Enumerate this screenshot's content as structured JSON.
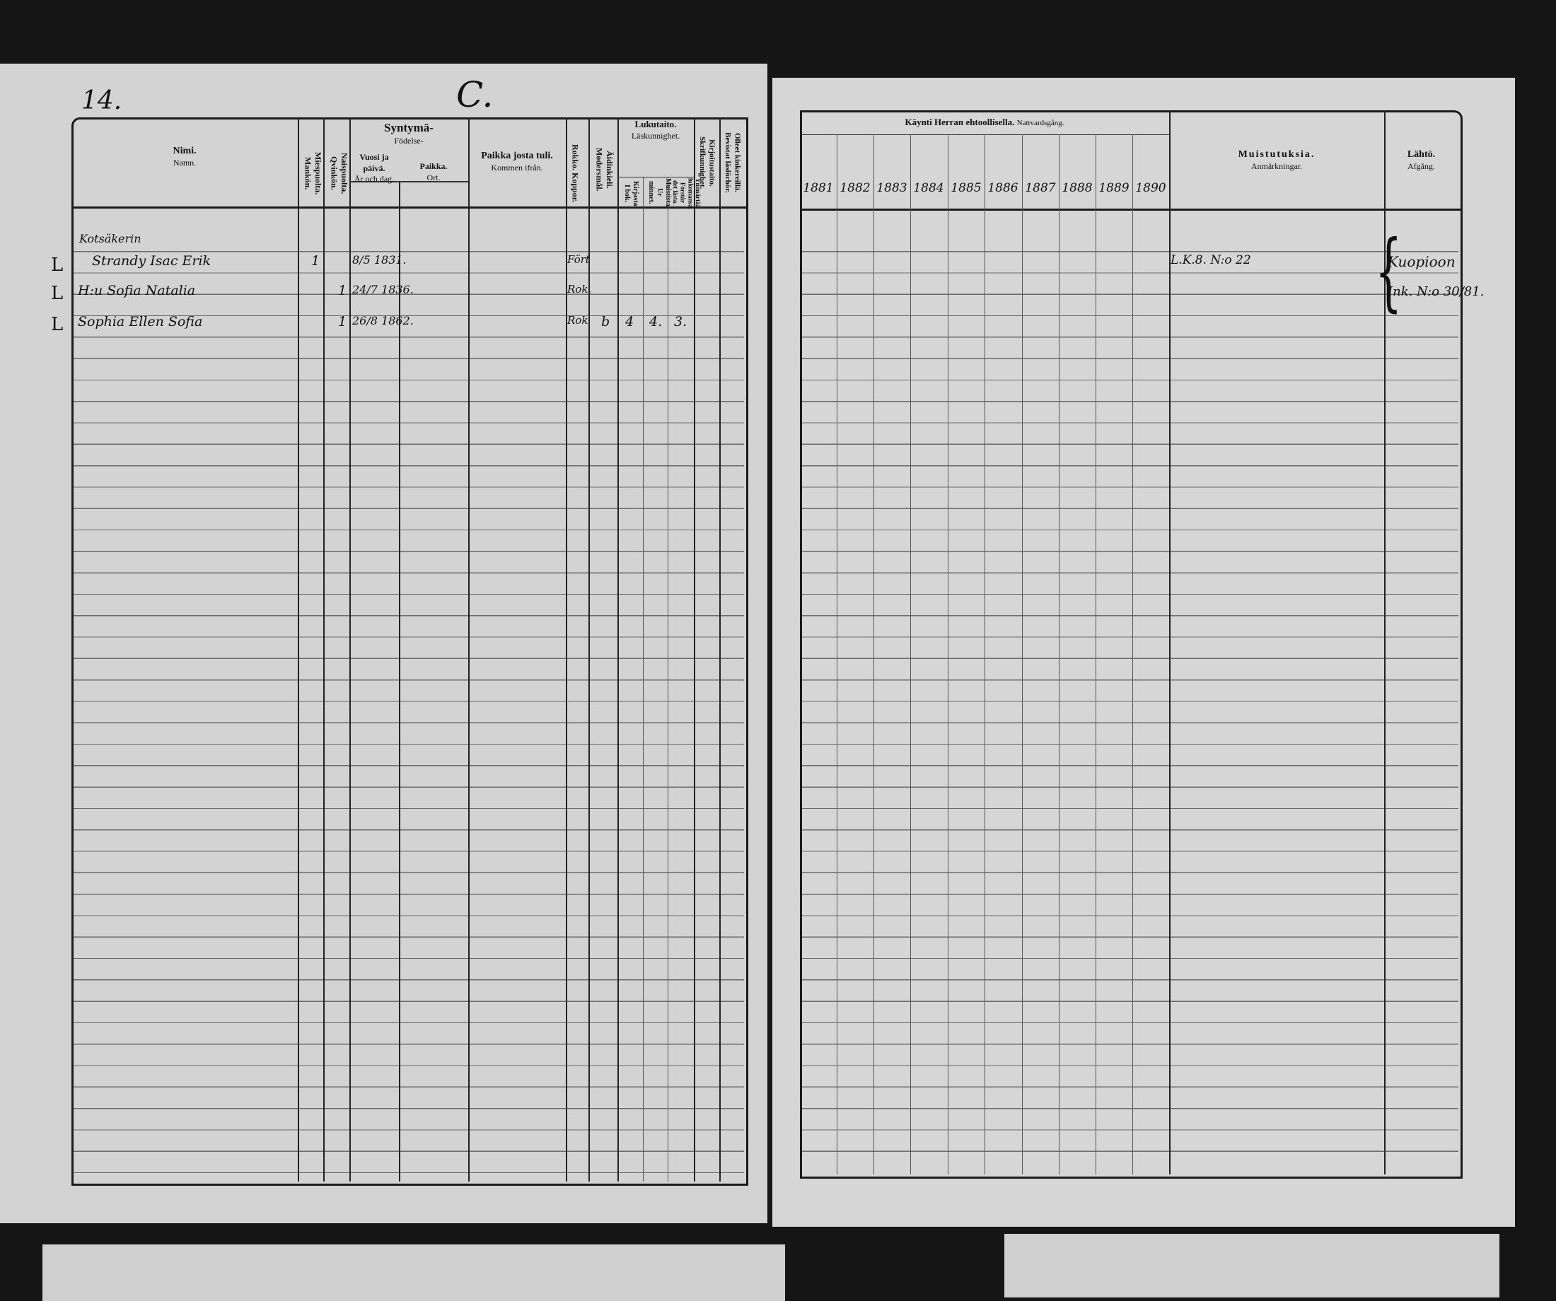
{
  "left_page": {
    "page_number": "14.",
    "letter": "C.",
    "headers": {
      "name": "Nimi.",
      "name_sv": "Namn.",
      "male": "Miespuolta. Mankön.",
      "female": "Naispuolta. Qvinkön.",
      "birth": "Syntymä-",
      "birth_sv": "Födelse-",
      "birth_date": "Vuosi ja päivä.",
      "birth_date_sv": "År och dag.",
      "birth_place": "Paikka.",
      "birth_place_sv": "Ort.",
      "from_place": "Paikka josta tuli.",
      "from_place_sv": "Kommen ifrån.",
      "smallpox": "Rokko. Koppor.",
      "mother_tongue": "Äidinkieli. Modersmål.",
      "literacy": "Lukutaito.",
      "literacy_sv": "Läskunnighet.",
      "book": "Kirjasta. I bok.",
      "memory": "Muistista. Ur minnet.",
      "understands": "Ymmärtää lukemansa. Förstår det lästa.",
      "writing": "Kirjoitustaito. Skrifkunnighet.",
      "hearings": "Olleet kinkereillä. Bevistat läsförhör."
    },
    "entries": {
      "household": "Kotsäkerin",
      "rows": [
        {
          "mark": "L",
          "name": "Strandy Isac Erik",
          "male": "1",
          "female": "",
          "birth": "8/5 1831.",
          "smallpox": "Fört",
          "tongue": "",
          "book": "",
          "memory": "",
          "understands": ""
        },
        {
          "mark": "L",
          "name": "H:u Sofia Natalia",
          "male": "",
          "female": "1",
          "birth": "24/7 1836.",
          "smallpox": "Rok.",
          "tongue": "",
          "book": "",
          "memory": "",
          "understands": ""
        },
        {
          "mark": "L",
          "name": "Sophia Ellen Sofia",
          "male": "",
          "female": "1",
          "birth": "26/8 1862.",
          "smallpox": "Rok",
          "tongue": "b",
          "book": "4",
          "memory": "4.",
          "understands": "3."
        }
      ]
    }
  },
  "right_page": {
    "headers": {
      "communion": "Käynti Herran ehtoollisella.",
      "communion_sv": "Nattvardsgång.",
      "years": [
        "1881",
        "1882",
        "1883",
        "1884",
        "1885",
        "1886",
        "1887",
        "1888",
        "1889",
        "1890"
      ],
      "remarks": "Muistutuksia.",
      "remarks_sv": "Anmärkningar.",
      "departure": "Lähtö.",
      "departure_sv": "Afgång."
    },
    "entries": {
      "remark": "L.K.8. N:o 22",
      "departure_1": "Kuopioon",
      "departure_2": "Ink. N:o 30/81."
    }
  }
}
